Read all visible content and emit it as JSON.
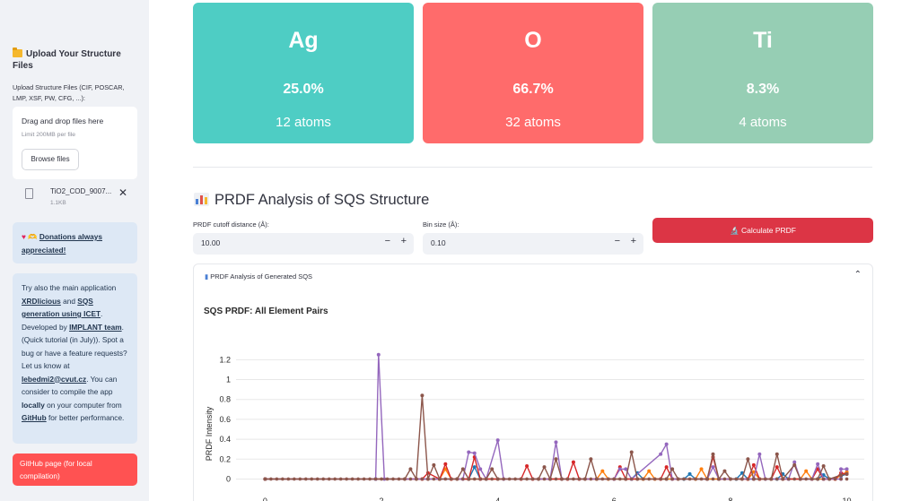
{
  "sidebar": {
    "upload_header": "Upload Your Structure Files",
    "upload_label": "Upload Structure Files (CIF, POSCAR, LMP, XSF, PW, CFG, ...):",
    "dropzone_title": "Drag and drop files here",
    "dropzone_limit": "Limit 200MB per file",
    "browse_label": "Browse files",
    "file": {
      "name": "TiO2_COD_9007...",
      "size": "1.1KB"
    },
    "donations_text": "Donations always appreciated!",
    "info": {
      "p1": "Try also the main application",
      "xrd_link": "XRDlicious",
      "and": "and",
      "sqs_link": "SQS generation using ICET",
      "developed_by": ". Developed by",
      "implant_link": "IMPLANT team",
      "tutorial": ". (Quick tutorial (in July)). Spot a bug or have a feature requests? Let us know at",
      "email": "lebedmi2@cvut.cz",
      "compile": ". You can consider to compile the app",
      "locally": "locally",
      "on_computer": "on your computer from",
      "github": "GitHub",
      "perf": "for better performance."
    },
    "github_box": "GitHub page (for local compilation)"
  },
  "elements": [
    {
      "symbol": "Ag",
      "percent": "25.0%",
      "atoms": "12 atoms",
      "color": "#4ecdc4"
    },
    {
      "symbol": "O",
      "percent": "66.7%",
      "atoms": "32 atoms",
      "color": "#ff6b6b"
    },
    {
      "symbol": "Ti",
      "percent": "8.3%",
      "atoms": "4 atoms",
      "color": "#96ceb4"
    }
  ],
  "prdf": {
    "section_title": "PRDF Analysis of SQS Structure",
    "cutoff_label": "PRDF cutoff distance (Å):",
    "cutoff_value": "10.00",
    "bin_label": "Bin size (Å):",
    "bin_value": "0.10",
    "minus": "−",
    "plus": "+",
    "calc_button": "Calculate PRDF",
    "expander_title": "PRDF Analysis of Generated SQS",
    "plot_title": "SQS PRDF: All Element Pairs"
  },
  "chart_data": {
    "type": "line",
    "title": "SQS PRDF: All Element Pairs",
    "xlabel": "",
    "ylabel": "PRDF Intensity",
    "xlim": [
      -0.5,
      10.3
    ],
    "ylim": [
      -0.05,
      1.32
    ],
    "xticks": [
      0,
      2,
      4,
      6,
      8,
      10
    ],
    "yticks": [
      0,
      0.2,
      0.4,
      0.6,
      0.8,
      1,
      1.2
    ],
    "grid": true,
    "series": [
      {
        "color": "#1f77b4",
        "values": [
          [
            0,
            0
          ],
          [
            1.9,
            0
          ],
          [
            3.5,
            0
          ],
          [
            3.6,
            0.12
          ],
          [
            3.7,
            0
          ],
          [
            6.3,
            0
          ],
          [
            6.4,
            0.06
          ],
          [
            6.5,
            0
          ],
          [
            7.2,
            0
          ],
          [
            7.3,
            0.05
          ],
          [
            7.4,
            0
          ],
          [
            8.1,
            0
          ],
          [
            8.2,
            0.06
          ],
          [
            8.3,
            0
          ],
          [
            8.8,
            0
          ],
          [
            8.9,
            0.05
          ],
          [
            9.0,
            0
          ],
          [
            9.5,
            0
          ],
          [
            9.6,
            0.04
          ],
          [
            9.7,
            0
          ],
          [
            9.9,
            0.03
          ],
          [
            10,
            0.05
          ]
        ]
      },
      {
        "color": "#ff7f0e",
        "values": [
          [
            0,
            0
          ],
          [
            3.0,
            0
          ],
          [
            3.1,
            0.1
          ],
          [
            3.2,
            0
          ],
          [
            5.7,
            0
          ],
          [
            5.8,
            0.08
          ],
          [
            5.9,
            0
          ],
          [
            6.5,
            0
          ],
          [
            6.6,
            0.08
          ],
          [
            6.7,
            0
          ],
          [
            7.4,
            0
          ],
          [
            7.5,
            0.1
          ],
          [
            7.6,
            0
          ],
          [
            8.3,
            0
          ],
          [
            8.4,
            0.07
          ],
          [
            8.5,
            0
          ],
          [
            9.2,
            0
          ],
          [
            9.3,
            0.08
          ],
          [
            9.4,
            0
          ],
          [
            9.8,
            0
          ],
          [
            9.9,
            0.04
          ],
          [
            10,
            0.07
          ]
        ]
      },
      {
        "color": "#d62728",
        "values": [
          [
            0,
            0
          ],
          [
            2.7,
            0
          ],
          [
            2.8,
            0.06
          ],
          [
            3.0,
            0
          ],
          [
            3.1,
            0.15
          ],
          [
            3.2,
            0
          ],
          [
            3.5,
            0
          ],
          [
            3.6,
            0.22
          ],
          [
            3.7,
            0
          ],
          [
            4.4,
            0
          ],
          [
            4.5,
            0.13
          ],
          [
            4.6,
            0
          ],
          [
            5.2,
            0
          ],
          [
            5.3,
            0.17
          ],
          [
            5.4,
            0
          ],
          [
            6.0,
            0
          ],
          [
            6.1,
            0.12
          ],
          [
            6.2,
            0
          ],
          [
            6.8,
            0
          ],
          [
            6.9,
            0.12
          ],
          [
            7.0,
            0
          ],
          [
            7.6,
            0
          ],
          [
            7.7,
            0.22
          ],
          [
            7.8,
            0
          ],
          [
            8.3,
            0
          ],
          [
            8.4,
            0.14
          ],
          [
            8.5,
            0
          ],
          [
            8.7,
            0
          ],
          [
            8.8,
            0.12
          ],
          [
            8.9,
            0
          ],
          [
            9.4,
            0
          ],
          [
            9.5,
            0.1
          ],
          [
            9.6,
            0
          ],
          [
            9.8,
            0
          ],
          [
            9.9,
            0.06
          ],
          [
            10,
            0.05
          ]
        ]
      },
      {
        "color": "#9467bd",
        "values": [
          [
            0,
            0
          ],
          [
            1.9,
            0
          ],
          [
            1.95,
            1.25
          ],
          [
            2.05,
            0
          ],
          [
            3.4,
            0
          ],
          [
            3.5,
            0.27
          ],
          [
            3.6,
            0.26
          ],
          [
            3.7,
            0.1
          ],
          [
            3.8,
            0
          ],
          [
            4.0,
            0.39
          ],
          [
            4.1,
            0
          ],
          [
            4.9,
            0
          ],
          [
            5.0,
            0.37
          ],
          [
            5.1,
            0
          ],
          [
            6.0,
            0
          ],
          [
            6.1,
            0.1
          ],
          [
            6.2,
            0.1
          ],
          [
            6.3,
            0
          ],
          [
            6.8,
            0.25
          ],
          [
            6.9,
            0.35
          ],
          [
            7.0,
            0
          ],
          [
            7.6,
            0
          ],
          [
            7.7,
            0.12
          ],
          [
            7.8,
            0
          ],
          [
            8.4,
            0
          ],
          [
            8.5,
            0.25
          ],
          [
            8.6,
            0
          ],
          [
            9.0,
            0
          ],
          [
            9.1,
            0.17
          ],
          [
            9.2,
            0
          ],
          [
            9.4,
            0
          ],
          [
            9.5,
            0.15
          ],
          [
            9.6,
            0
          ],
          [
            9.9,
            0
          ],
          [
            9.9,
            0.1
          ],
          [
            10,
            0.1
          ]
        ]
      },
      {
        "color": "#8c564b",
        "values": [
          [
            0,
            0
          ],
          [
            2.4,
            0
          ],
          [
            2.5,
            0.1
          ],
          [
            2.6,
            0
          ],
          [
            2.7,
            0.84
          ],
          [
            2.8,
            0
          ],
          [
            2.9,
            0.14
          ],
          [
            3.0,
            0
          ],
          [
            3.3,
            0
          ],
          [
            3.4,
            0.1
          ],
          [
            3.5,
            0
          ],
          [
            3.8,
            0
          ],
          [
            3.9,
            0.1
          ],
          [
            4.0,
            0
          ],
          [
            4.7,
            0
          ],
          [
            4.8,
            0.12
          ],
          [
            4.9,
            0
          ],
          [
            5.0,
            0.2
          ],
          [
            5.1,
            0
          ],
          [
            5.5,
            0
          ],
          [
            5.6,
            0.2
          ],
          [
            5.7,
            0
          ],
          [
            6.2,
            0
          ],
          [
            6.3,
            0.27
          ],
          [
            6.4,
            0
          ],
          [
            6.9,
            0
          ],
          [
            7.0,
            0.1
          ],
          [
            7.1,
            0
          ],
          [
            7.6,
            0
          ],
          [
            7.7,
            0.25
          ],
          [
            7.8,
            0
          ],
          [
            7.9,
            0.08
          ],
          [
            8.0,
            0
          ],
          [
            8.2,
            0
          ],
          [
            8.3,
            0.2
          ],
          [
            8.4,
            0
          ],
          [
            8.7,
            0
          ],
          [
            8.8,
            0.25
          ],
          [
            8.9,
            0
          ],
          [
            9.1,
            0.14
          ],
          [
            9.2,
            0
          ],
          [
            9.5,
            0
          ],
          [
            9.6,
            0.13
          ],
          [
            9.7,
            0
          ],
          [
            9.9,
            0.04
          ],
          [
            10,
            0.05
          ]
        ]
      }
    ]
  }
}
